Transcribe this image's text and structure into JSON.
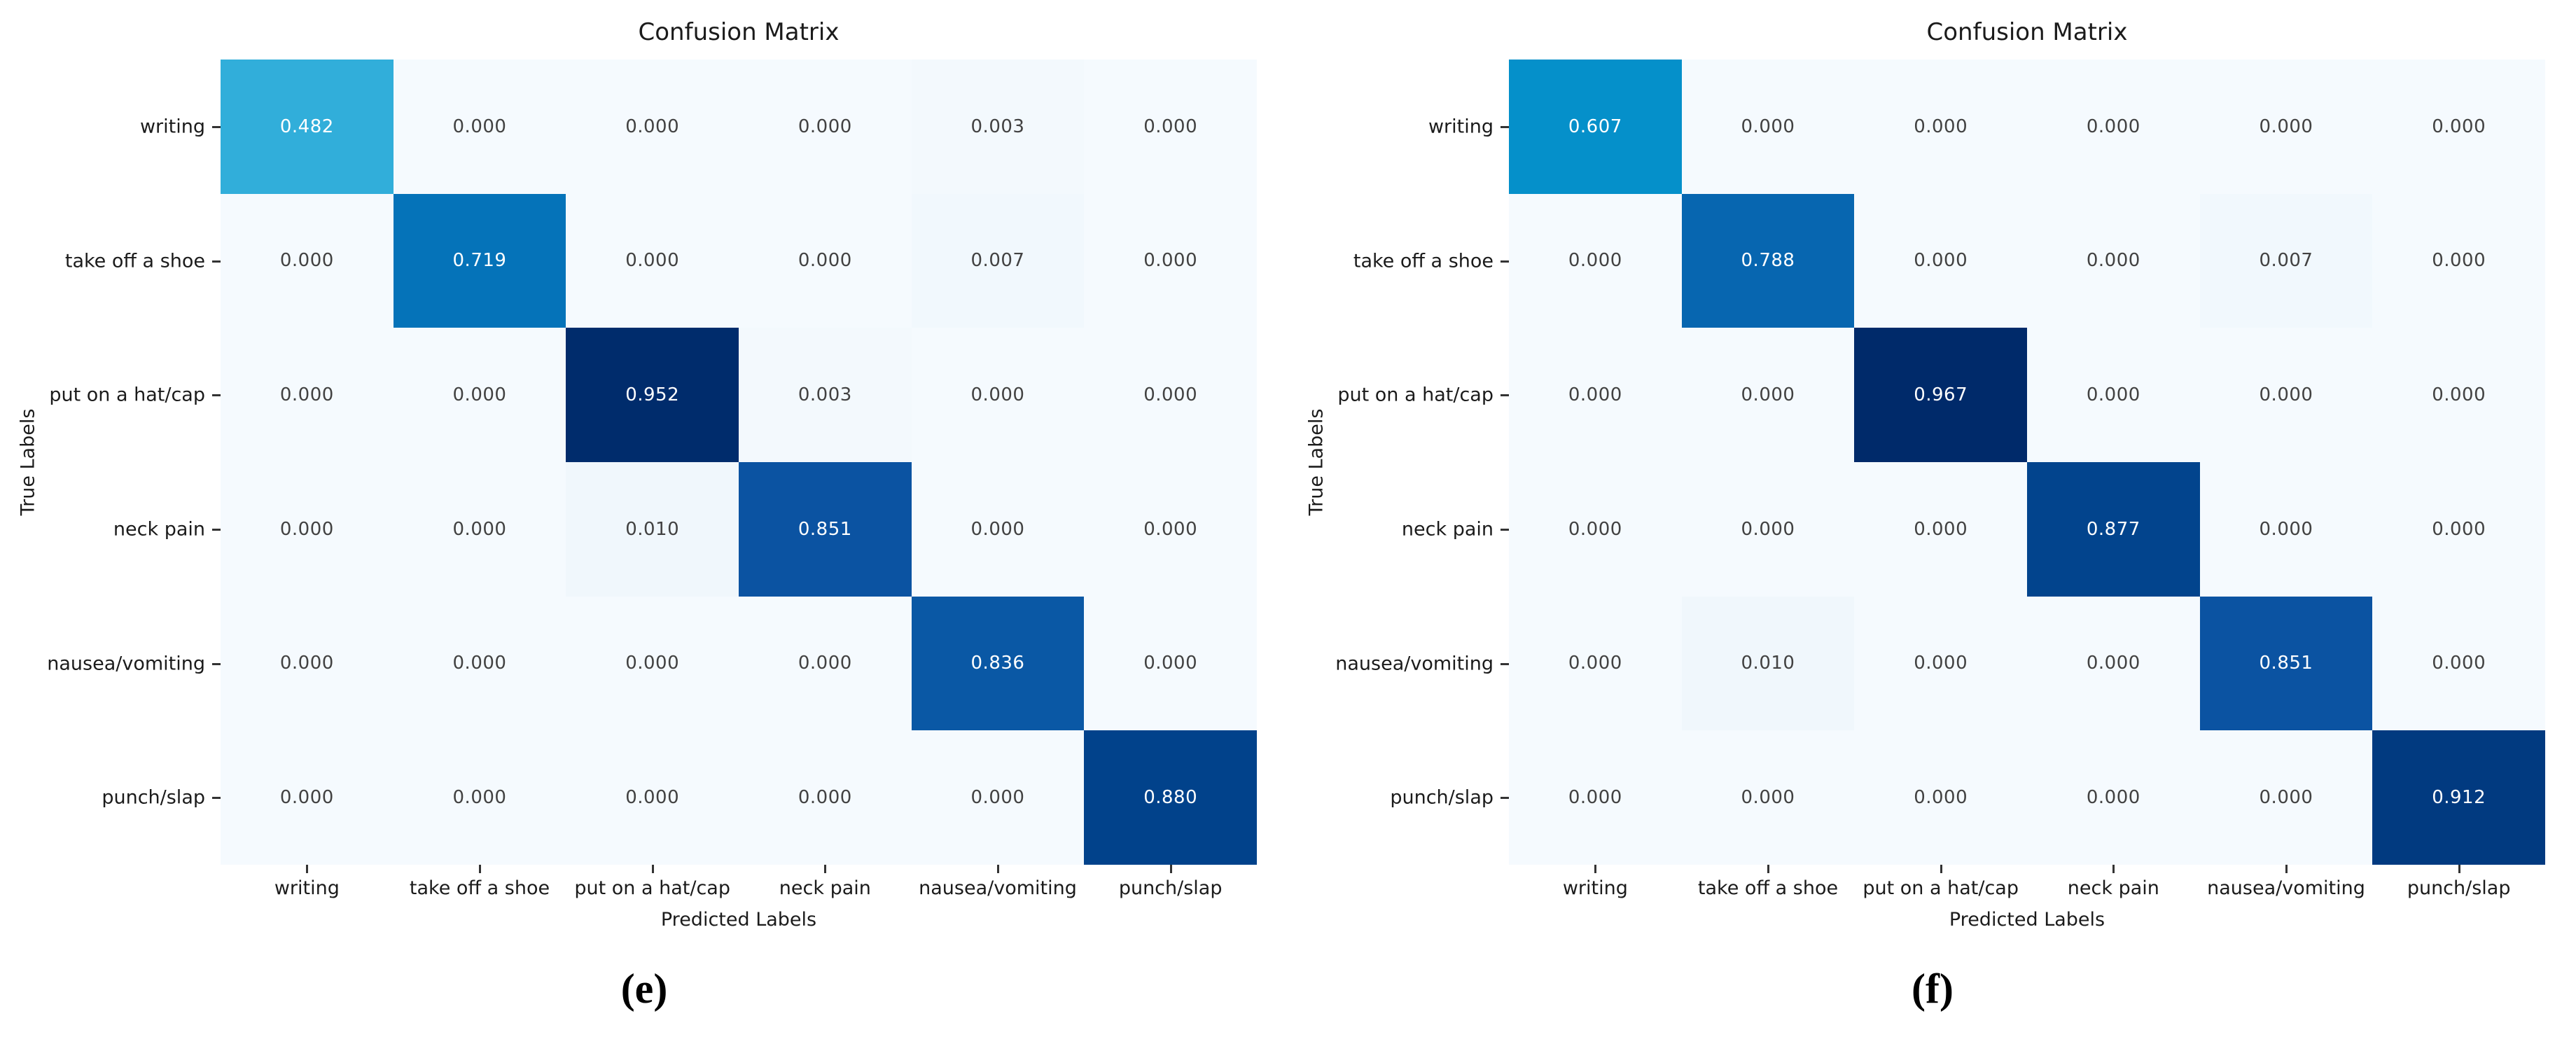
{
  "chart_data": [
    {
      "type": "heatmap",
      "title": "Confusion Matrix",
      "xlabel": "Predicted Labels",
      "ylabel": "True Labels",
      "caption": "(e)",
      "categories": [
        "writing",
        "take off a shoe",
        "put on a hat/cap",
        "neck pain",
        "nausea/vomiting",
        "punch/slap"
      ],
      "matrix": [
        [
          0.482,
          0.0,
          0.0,
          0.0,
          0.003,
          0.0
        ],
        [
          0.0,
          0.719,
          0.0,
          0.0,
          0.007,
          0.0
        ],
        [
          0.0,
          0.0,
          0.952,
          0.003,
          0.0,
          0.0
        ],
        [
          0.0,
          0.0,
          0.01,
          0.851,
          0.0,
          0.0
        ],
        [
          0.0,
          0.0,
          0.0,
          0.0,
          0.836,
          0.0
        ],
        [
          0.0,
          0.0,
          0.0,
          0.0,
          0.0,
          0.88
        ]
      ],
      "value_format": "3-decimals",
      "value_range": [
        0,
        1
      ],
      "grid": "off",
      "legend": "none"
    },
    {
      "type": "heatmap",
      "title": "Confusion Matrix",
      "xlabel": "Predicted Labels",
      "ylabel": "True Labels",
      "caption": "(f)",
      "categories": [
        "writing",
        "take off a shoe",
        "put on a hat/cap",
        "neck pain",
        "nausea/vomiting",
        "punch/slap"
      ],
      "matrix": [
        [
          0.607,
          0.0,
          0.0,
          0.0,
          0.0,
          0.0
        ],
        [
          0.0,
          0.788,
          0.0,
          0.0,
          0.007,
          0.0
        ],
        [
          0.0,
          0.0,
          0.967,
          0.0,
          0.0,
          0.0
        ],
        [
          0.0,
          0.0,
          0.0,
          0.877,
          0.0,
          0.0
        ],
        [
          0.0,
          0.01,
          0.0,
          0.0,
          0.851,
          0.0
        ],
        [
          0.0,
          0.0,
          0.0,
          0.0,
          0.0,
          0.912
        ]
      ],
      "value_format": "3-decimals",
      "value_range": [
        0,
        1
      ],
      "grid": "off",
      "legend": "none"
    }
  ],
  "colors": {
    "background": "#ffffff",
    "colormap_name": "blues-sequential",
    "colormap_stops": [
      [
        0.0,
        "#f5fafe"
      ],
      [
        0.02,
        "#eaf3fa"
      ],
      [
        0.25,
        "#a9d6ec"
      ],
      [
        0.482,
        "#31aeda"
      ],
      [
        0.607,
        "#0590ca"
      ],
      [
        0.719,
        "#0573b9"
      ],
      [
        0.788,
        "#0766b0"
      ],
      [
        0.851,
        "#0b53a2"
      ],
      [
        0.88,
        "#01428b"
      ],
      [
        0.912,
        "#013a80"
      ],
      [
        0.952,
        "#002c6c"
      ],
      [
        1.0,
        "#002766"
      ]
    ],
    "cell_text_dark": "#424242",
    "cell_text_light": "#ffffff",
    "axis_text": "#1b1b1b",
    "tick_mark": "#333333"
  }
}
